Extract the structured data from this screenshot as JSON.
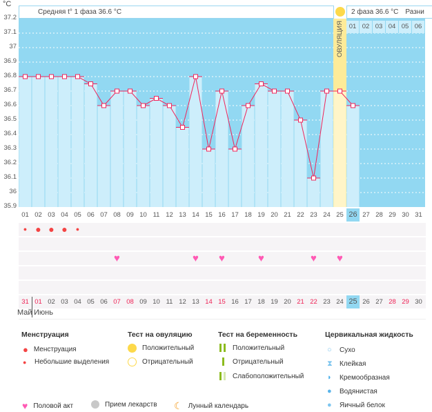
{
  "unit_label": "°C",
  "header": {
    "phase1": "Средняя t° 1 фаза 36.6 °C",
    "phase2": "2 фаза 36.6 °C",
    "diff": "Разни",
    "ovulation": "ОВУЛЯЦИЯ"
  },
  "phase2_days": [
    "01",
    "02",
    "03",
    "04",
    "05",
    "06"
  ],
  "colors": {
    "bg": "#92d8f2",
    "bar": "#cdeefb",
    "line": "#f0245a",
    "ovulation": "#fff5c8",
    "today": "#92d8f2",
    "menses": "#f44444",
    "heart": "#ff5ab4",
    "weekend": "#ee2255"
  },
  "chart_data": {
    "type": "line",
    "ylim": [
      35.9,
      37.2
    ],
    "yticks": [
      "37.2",
      "37.1",
      "37",
      "36.9",
      "36.8",
      "36.7",
      "36.6",
      "36.5",
      "36.4",
      "36.3",
      "36.2",
      "36.1",
      "36",
      "35.9"
    ],
    "cycle_days": [
      "01",
      "02",
      "03",
      "04",
      "05",
      "06",
      "07",
      "08",
      "09",
      "10",
      "11",
      "12",
      "13",
      "14",
      "15",
      "16",
      "17",
      "18",
      "19",
      "20",
      "21",
      "22",
      "23",
      "24",
      "25",
      "26",
      "27",
      "28",
      "29",
      "30",
      "31"
    ],
    "temperatures": [
      36.8,
      36.8,
      36.8,
      36.8,
      36.8,
      36.75,
      36.6,
      36.7,
      36.7,
      36.6,
      36.65,
      36.6,
      36.45,
      36.8,
      36.3,
      36.7,
      36.3,
      36.6,
      36.75,
      36.7,
      36.7,
      36.5,
      36.1,
      36.7,
      36.7,
      36.6
    ],
    "ovulation_day": 25,
    "today_day": 26
  },
  "menstruation": [
    "small",
    "big",
    "big",
    "big",
    "small"
  ],
  "intercourse_days": [
    8,
    14,
    16,
    19,
    23,
    25
  ],
  "dates": [
    "31",
    "01",
    "02",
    "03",
    "04",
    "05",
    "06",
    "07",
    "08",
    "09",
    "10",
    "11",
    "12",
    "13",
    "14",
    "15",
    "16",
    "17",
    "18",
    "19",
    "20",
    "21",
    "22",
    "23",
    "24",
    "25",
    "26",
    "27",
    "28",
    "29",
    "30"
  ],
  "weekend_dates": [
    0,
    1,
    7,
    8,
    14,
    15,
    21,
    22,
    28,
    29
  ],
  "months": [
    "Май",
    "Июнь"
  ],
  "legend": {
    "menses": {
      "title": "Менструация",
      "items": [
        "Менструация",
        "Небольшие выделения"
      ]
    },
    "ovtest": {
      "title": "Тест на овуляцию",
      "items": [
        "Положительный",
        "Отрицательный"
      ]
    },
    "pregtest": {
      "title": "Тест на беременность",
      "items": [
        "Положительный",
        "Отрицательный",
        "Слабоположительный"
      ]
    },
    "cervical": {
      "title": "Цервикальная жидкость",
      "items": [
        "Сухо",
        "Клейкая",
        "Кремообразная",
        "Водянистая",
        "Яичный белок"
      ]
    },
    "bottom": [
      "Половой акт",
      "Прием лекарств",
      "Лунный календарь"
    ]
  }
}
